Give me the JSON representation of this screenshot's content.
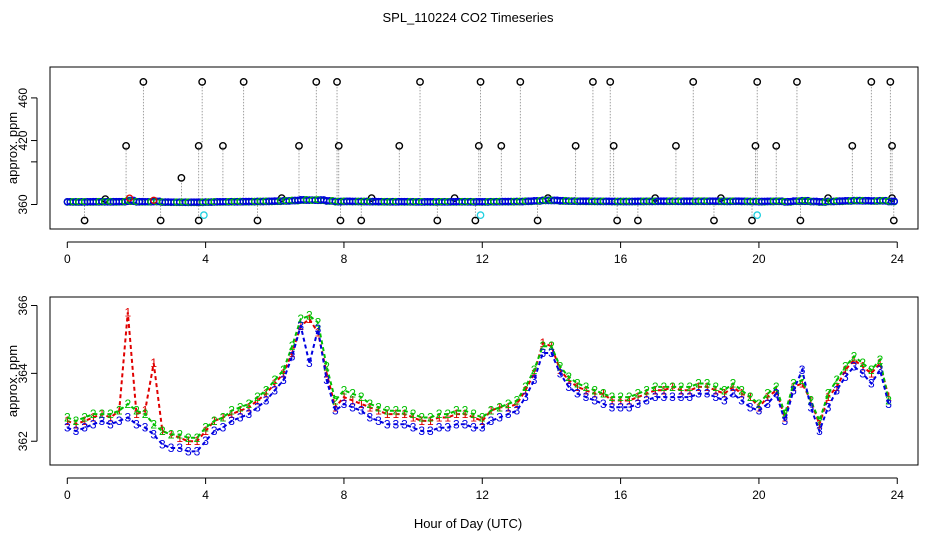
{
  "title": "SPL_110224  CO2 Timeseries",
  "xlabel": "Hour of Day (UTC)",
  "colors": {
    "one": "#e00000",
    "two": "#00c000",
    "three": "#0000e0",
    "black": "#000000",
    "cyan": "#20d0e0",
    "grey": "#888888"
  },
  "chart_data": [
    {
      "type": "scatter",
      "name": "raw",
      "ylabel": "approx. ppm",
      "xlim": [
        -0.5,
        24.6
      ],
      "ylim": [
        337,
        489
      ],
      "xticks": [
        0,
        4,
        8,
        12,
        16,
        20,
        24
      ],
      "yticks": [
        360,
        400,
        420,
        460
      ],
      "ytick_labels": [
        "360",
        "420",
        "460"
      ],
      "baseline": 362,
      "spike_high": [
        1.7,
        2.2,
        3.3,
        3.8,
        3.9,
        4.5,
        5.1,
        6.7,
        7.2,
        7.8,
        7.85,
        9.6,
        10.2,
        11.9,
        11.95,
        12.55,
        13.1,
        14.7,
        15.2,
        15.7,
        15.8,
        17.6,
        18.1,
        19.9,
        19.95,
        20.5,
        21.1,
        22.7,
        23.25,
        23.8,
        23.85
      ],
      "spike_high_values": [
        415,
        475,
        385,
        415,
        475,
        415,
        475,
        415,
        475,
        475,
        415,
        415,
        475,
        415,
        475,
        415,
        475,
        415,
        475,
        475,
        415,
        415,
        475,
        415,
        475,
        415,
        475,
        415,
        475,
        475,
        415
      ],
      "spike_low": [
        0.5,
        2.7,
        3.8,
        5.5,
        7.9,
        8.5,
        10.7,
        11.8,
        13.6,
        15.9,
        16.5,
        18.7,
        19.8,
        21.2,
        23.9
      ],
      "spike_low_value": 345,
      "cyan_points": [
        [
          3.95,
          350
        ],
        [
          11.95,
          350
        ],
        [
          19.95,
          350
        ]
      ],
      "minor_bumps": [
        [
          1.1,
          365
        ],
        [
          6.2,
          366
        ],
        [
          8.8,
          366
        ],
        [
          11.2,
          366
        ],
        [
          13.9,
          366
        ],
        [
          17.0,
          366
        ],
        [
          18.9,
          366
        ],
        [
          22.0,
          366
        ],
        [
          23.85,
          366
        ]
      ],
      "red_bumps": [
        [
          1.8,
          366
        ],
        [
          2.5,
          364
        ]
      ]
    },
    {
      "type": "line",
      "name": "smoothed",
      "ylabel": "approx. ppm",
      "xlim": [
        -0.5,
        24.6
      ],
      "ylim": [
        361.3,
        366.25
      ],
      "xticks": [
        0,
        4,
        8,
        12,
        16,
        20,
        24
      ],
      "yticks": [
        362,
        364,
        366
      ],
      "series": [
        {
          "name": "1",
          "x": [
            0.0,
            0.25,
            0.5,
            0.75,
            1.0,
            1.25,
            1.5,
            1.75,
            2.0,
            2.25,
            2.5,
            2.75,
            3.0,
            3.25,
            3.5,
            3.75,
            4.0,
            4.25,
            4.5,
            4.75,
            5.0,
            5.25,
            5.5,
            5.75,
            6.0,
            6.25,
            6.5,
            6.75,
            7.0,
            7.25,
            7.5,
            7.75,
            8.0,
            8.25,
            8.5,
            8.75,
            9.0,
            9.25,
            9.5,
            9.75,
            10.0,
            10.25,
            10.5,
            10.75,
            11.0,
            11.25,
            11.5,
            11.75,
            12.0,
            12.25,
            12.5,
            12.75,
            13.0,
            13.25,
            13.5,
            13.75,
            14.0,
            14.25,
            14.5,
            14.75,
            15.0,
            15.25,
            15.5,
            15.75,
            16.0,
            16.25,
            16.5,
            16.75,
            17.0,
            17.25,
            17.5,
            17.75,
            18.0,
            18.25,
            18.5,
            18.75,
            19.0,
            19.25,
            19.5,
            19.75,
            20.0,
            20.25,
            20.5,
            20.75,
            21.0,
            21.25,
            21.5,
            21.75,
            22.0,
            22.25,
            22.5,
            22.75,
            23.0,
            23.25,
            23.5,
            23.75
          ],
          "values": [
            362.6,
            362.5,
            362.6,
            362.7,
            362.8,
            362.7,
            362.9,
            365.8,
            362.8,
            362.9,
            364.3,
            362.3,
            362.2,
            362.1,
            362.0,
            362.0,
            362.3,
            362.6,
            362.7,
            362.8,
            362.9,
            363.0,
            363.2,
            363.4,
            363.7,
            364.0,
            364.6,
            365.4,
            365.6,
            365.2,
            364.0,
            363.0,
            363.3,
            363.2,
            363.1,
            363.0,
            362.9,
            362.8,
            362.8,
            362.8,
            362.7,
            362.6,
            362.6,
            362.7,
            362.7,
            362.8,
            362.8,
            362.7,
            362.6,
            362.9,
            363.0,
            363.0,
            363.1,
            363.5,
            364.0,
            364.9,
            364.8,
            364.1,
            363.8,
            363.6,
            363.5,
            363.4,
            363.4,
            363.2,
            363.2,
            363.2,
            363.3,
            363.4,
            363.5,
            363.5,
            363.6,
            363.5,
            363.5,
            363.6,
            363.6,
            363.5,
            363.4,
            363.6,
            363.4,
            363.3,
            363.0,
            363.3,
            363.5,
            362.7,
            363.6,
            363.7,
            363.2,
            362.5,
            363.3,
            363.6,
            364.1,
            364.4,
            364.2,
            364.0,
            364.3,
            363.3
          ]
        },
        {
          "name": "2",
          "x": [
            0.0,
            0.25,
            0.5,
            0.75,
            1.0,
            1.25,
            1.5,
            1.75,
            2.0,
            2.25,
            2.5,
            2.75,
            3.0,
            3.25,
            3.5,
            3.75,
            4.0,
            4.25,
            4.5,
            4.75,
            5.0,
            5.25,
            5.5,
            5.75,
            6.0,
            6.25,
            6.5,
            6.75,
            7.0,
            7.25,
            7.5,
            7.75,
            8.0,
            8.25,
            8.5,
            8.75,
            9.0,
            9.25,
            9.5,
            9.75,
            10.0,
            10.25,
            10.5,
            10.75,
            11.0,
            11.25,
            11.5,
            11.75,
            12.0,
            12.25,
            12.5,
            12.75,
            13.0,
            13.25,
            13.5,
            13.75,
            14.0,
            14.25,
            14.5,
            14.75,
            15.0,
            15.25,
            15.5,
            15.75,
            16.0,
            16.25,
            16.5,
            16.75,
            17.0,
            17.25,
            17.5,
            17.75,
            18.0,
            18.25,
            18.5,
            18.75,
            19.0,
            19.25,
            19.5,
            19.75,
            20.0,
            20.25,
            20.5,
            20.75,
            21.0,
            21.25,
            21.5,
            21.75,
            22.0,
            22.25,
            22.5,
            22.75,
            23.0,
            23.25,
            23.5,
            23.75
          ],
          "values": [
            362.7,
            362.6,
            362.7,
            362.8,
            362.8,
            362.8,
            362.9,
            363.1,
            362.9,
            362.8,
            362.5,
            362.3,
            362.2,
            362.2,
            362.1,
            362.1,
            362.4,
            362.6,
            362.7,
            362.9,
            363.0,
            363.1,
            363.3,
            363.5,
            363.8,
            364.1,
            364.8,
            365.6,
            365.7,
            365.5,
            364.2,
            363.2,
            363.5,
            363.4,
            363.3,
            363.1,
            363.0,
            362.9,
            362.9,
            362.9,
            362.8,
            362.7,
            362.7,
            362.8,
            362.8,
            362.9,
            362.9,
            362.8,
            362.7,
            362.9,
            363.0,
            363.1,
            363.2,
            363.6,
            364.1,
            364.8,
            364.8,
            364.2,
            363.9,
            363.7,
            363.6,
            363.5,
            363.4,
            363.3,
            363.3,
            363.3,
            363.4,
            363.5,
            363.6,
            363.6,
            363.6,
            363.6,
            363.6,
            363.7,
            363.7,
            363.6,
            363.5,
            363.7,
            363.5,
            363.3,
            363.1,
            363.4,
            363.6,
            362.8,
            363.7,
            363.8,
            363.2,
            362.6,
            363.4,
            363.8,
            364.2,
            364.5,
            364.3,
            364.1,
            364.4,
            363.2
          ]
        },
        {
          "name": "3",
          "x": [
            0.0,
            0.25,
            0.5,
            0.75,
            1.0,
            1.25,
            1.5,
            1.75,
            2.0,
            2.25,
            2.5,
            2.75,
            3.0,
            3.25,
            3.5,
            3.75,
            4.0,
            4.25,
            4.5,
            4.75,
            5.0,
            5.25,
            5.5,
            5.75,
            6.0,
            6.25,
            6.5,
            6.75,
            7.0,
            7.25,
            7.5,
            7.75,
            8.0,
            8.25,
            8.5,
            8.75,
            9.0,
            9.25,
            9.5,
            9.75,
            10.0,
            10.25,
            10.5,
            10.75,
            11.0,
            11.25,
            11.5,
            11.75,
            12.0,
            12.25,
            12.5,
            12.75,
            13.0,
            13.25,
            13.5,
            13.75,
            14.0,
            14.25,
            14.5,
            14.75,
            15.0,
            15.25,
            15.5,
            15.75,
            16.0,
            16.25,
            16.5,
            16.75,
            17.0,
            17.25,
            17.5,
            17.75,
            18.0,
            18.25,
            18.5,
            18.75,
            19.0,
            19.25,
            19.5,
            19.75,
            20.0,
            20.25,
            20.5,
            20.75,
            21.0,
            21.25,
            21.5,
            21.75,
            22.0,
            22.25,
            22.5,
            22.75,
            23.0,
            23.25,
            23.5,
            23.75
          ],
          "values": [
            362.4,
            362.3,
            362.4,
            362.5,
            362.6,
            362.5,
            362.6,
            362.7,
            362.5,
            362.4,
            362.2,
            361.9,
            361.8,
            361.8,
            361.7,
            361.7,
            362.0,
            362.3,
            362.4,
            362.6,
            362.7,
            362.8,
            363.0,
            363.2,
            363.5,
            363.8,
            364.5,
            365.4,
            364.3,
            365.3,
            363.8,
            362.9,
            363.1,
            363.0,
            362.9,
            362.7,
            362.6,
            362.5,
            362.5,
            362.5,
            362.4,
            362.3,
            362.3,
            362.4,
            362.4,
            362.5,
            362.5,
            362.4,
            362.4,
            362.6,
            362.7,
            362.8,
            362.9,
            363.3,
            363.8,
            364.6,
            364.6,
            364.0,
            363.6,
            363.4,
            363.3,
            363.2,
            363.1,
            363.0,
            363.0,
            363.0,
            363.1,
            363.2,
            363.3,
            363.3,
            363.3,
            363.3,
            363.3,
            363.4,
            363.4,
            363.3,
            363.2,
            363.4,
            363.2,
            363.0,
            362.9,
            363.1,
            363.4,
            362.6,
            363.5,
            364.1,
            363.0,
            362.3,
            363.0,
            363.5,
            363.9,
            364.2,
            364.0,
            363.7,
            364.1,
            363.1
          ]
        }
      ]
    }
  ]
}
